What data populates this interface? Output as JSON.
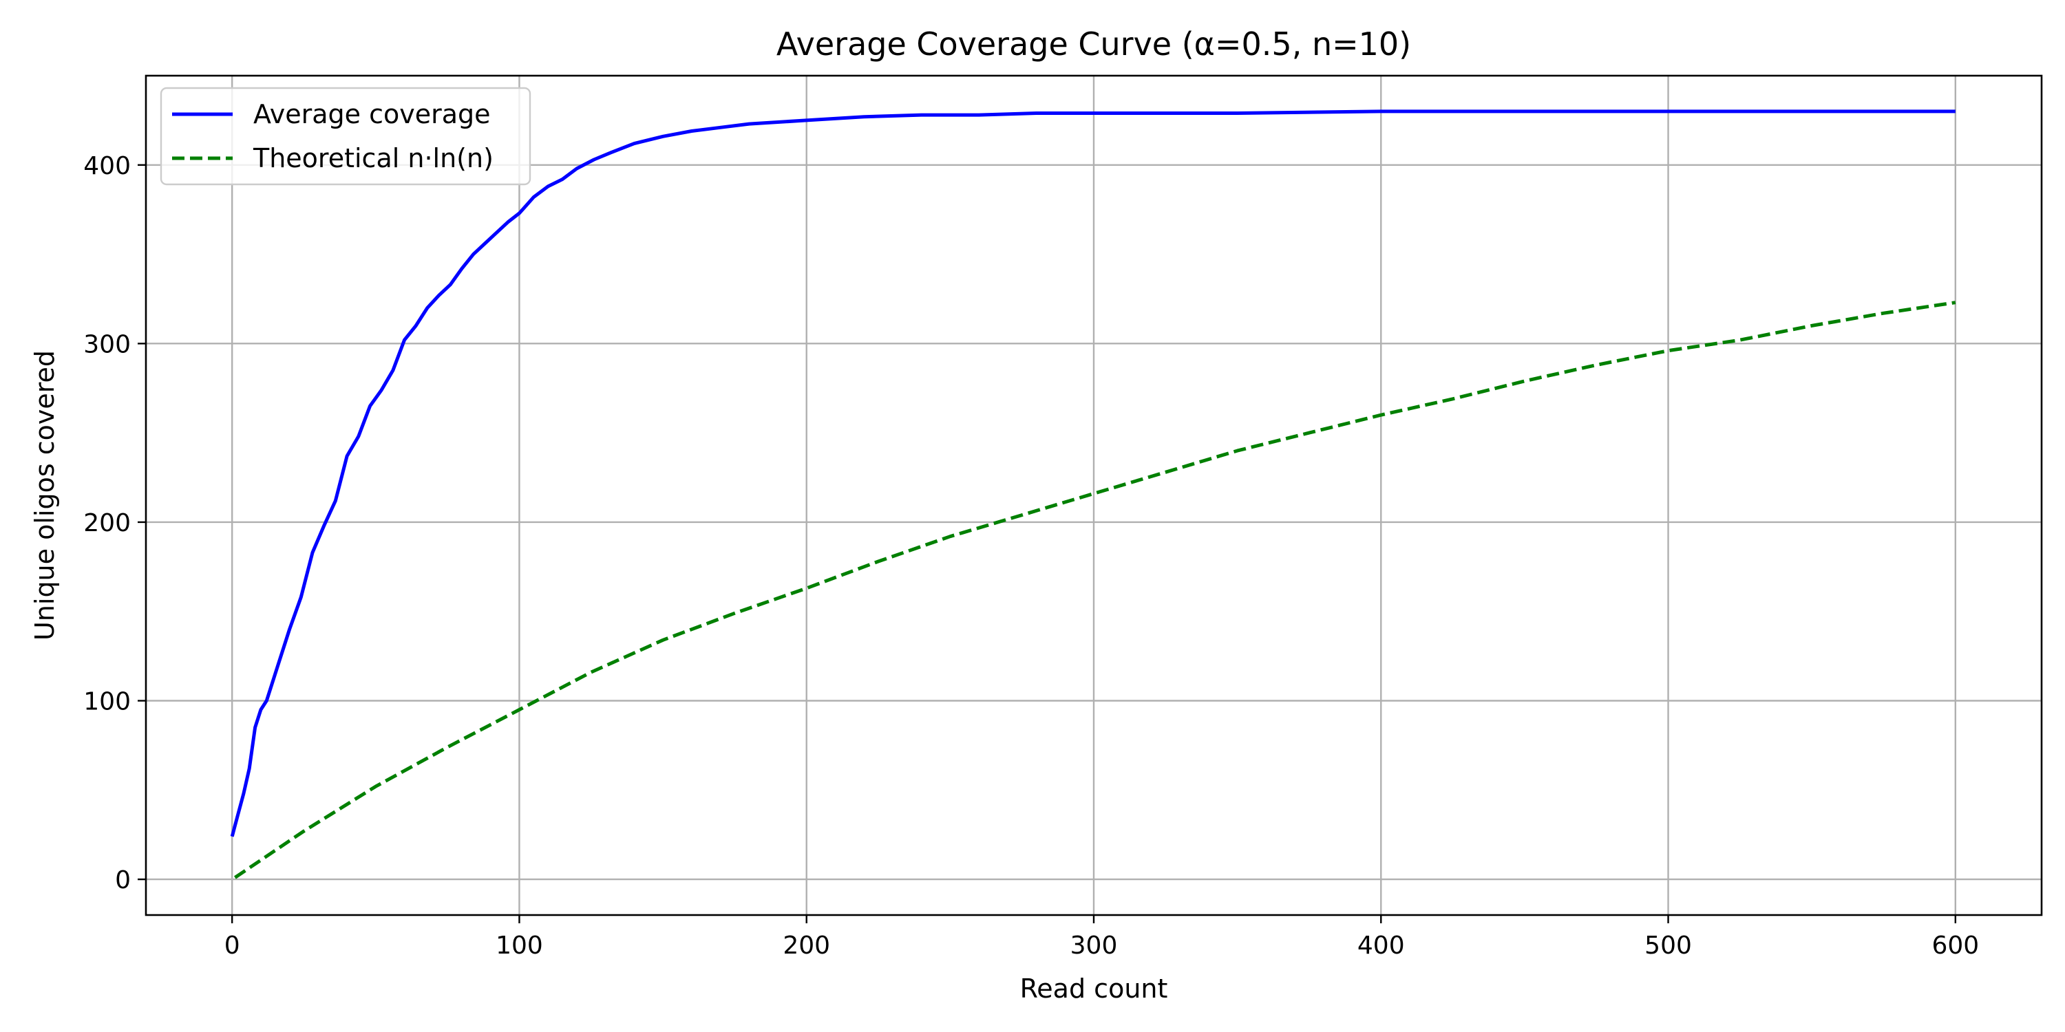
{
  "chart_data": {
    "type": "line",
    "title": "Average Coverage Curve (α=0.5, n=10)",
    "xlabel": "Read count",
    "ylabel": "Unique oligos covered",
    "xlim": [
      -30,
      630
    ],
    "ylim": [
      -20,
      450
    ],
    "xticks": [
      0,
      100,
      200,
      300,
      400,
      500,
      600
    ],
    "yticks": [
      0,
      100,
      200,
      300,
      400
    ],
    "grid": true,
    "legend_position": "upper-left",
    "series": [
      {
        "name": "Average coverage",
        "color": "#0000ff",
        "style": "solid",
        "x": [
          0,
          2,
          4,
          6,
          8,
          10,
          12,
          16,
          20,
          24,
          28,
          32,
          36,
          40,
          44,
          48,
          52,
          56,
          60,
          64,
          68,
          72,
          76,
          80,
          84,
          88,
          92,
          96,
          100,
          105,
          110,
          115,
          120,
          126,
          132,
          140,
          150,
          160,
          170,
          180,
          190,
          200,
          220,
          240,
          260,
          280,
          300,
          350,
          400,
          450,
          500,
          550,
          600
        ],
        "y": [
          24,
          36,
          48,
          62,
          85,
          95,
          100,
          120,
          140,
          158,
          183,
          198,
          212,
          237,
          248,
          265,
          274,
          285,
          302,
          310,
          320,
          327,
          333,
          342,
          350,
          356,
          362,
          368,
          373,
          382,
          388,
          392,
          398,
          403,
          407,
          412,
          416,
          419,
          421,
          423,
          424,
          425,
          427,
          428,
          428,
          429,
          429,
          429,
          430,
          430,
          430,
          430,
          430
        ]
      },
      {
        "name": "Theoretical n·ln(n)",
        "color": "#008000",
        "style": "dashed",
        "x": [
          1,
          25,
          50,
          75,
          100,
          125,
          150,
          175,
          200,
          225,
          250,
          275,
          300,
          325,
          350,
          375,
          400,
          425,
          450,
          475,
          500,
          525,
          550,
          575,
          600
        ],
        "y": [
          1,
          27,
          52,
          74,
          95,
          116,
          134,
          149,
          163,
          178,
          192,
          204,
          216,
          228,
          240,
          250,
          260,
          269,
          279,
          288,
          296,
          302,
          310,
          317,
          323
        ]
      }
    ]
  }
}
